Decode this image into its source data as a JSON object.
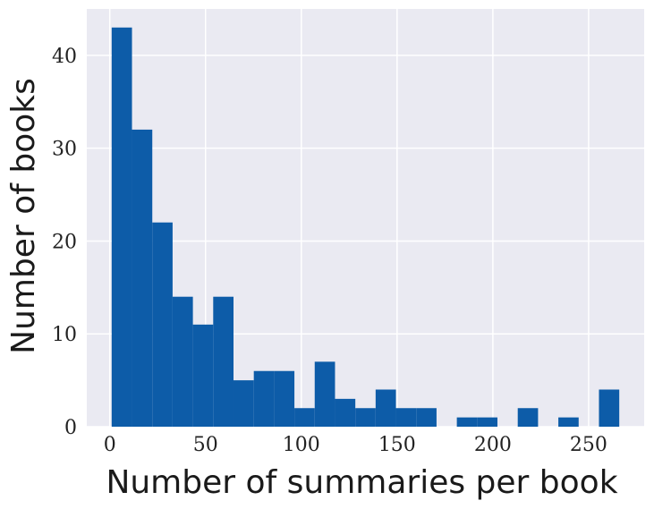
{
  "chart_data": {
    "type": "bar",
    "xlabel": "Number of summaries per book",
    "ylabel": "Number of books",
    "xlim": [
      -12,
      279
    ],
    "ylim": [
      0,
      45
    ],
    "xticks": [
      0,
      50,
      100,
      150,
      200,
      250
    ],
    "yticks": [
      0,
      10,
      20,
      30,
      40
    ],
    "grid": true,
    "bar_color": "#0d5ca8",
    "background_color": "#eaeaf2",
    "bins": [
      {
        "x0": 1.0,
        "x1": 11.6,
        "count": 43
      },
      {
        "x0": 11.6,
        "x1": 22.2,
        "count": 32
      },
      {
        "x0": 22.2,
        "x1": 32.8,
        "count": 22
      },
      {
        "x0": 32.8,
        "x1": 43.4,
        "count": 14
      },
      {
        "x0": 43.4,
        "x1": 54.0,
        "count": 11
      },
      {
        "x0": 54.0,
        "x1": 64.6,
        "count": 14
      },
      {
        "x0": 64.6,
        "x1": 75.2,
        "count": 5
      },
      {
        "x0": 75.2,
        "x1": 85.8,
        "count": 6
      },
      {
        "x0": 85.8,
        "x1": 96.4,
        "count": 6
      },
      {
        "x0": 96.4,
        "x1": 107.0,
        "count": 2
      },
      {
        "x0": 107.0,
        "x1": 117.6,
        "count": 7
      },
      {
        "x0": 117.6,
        "x1": 128.2,
        "count": 3
      },
      {
        "x0": 128.2,
        "x1": 138.8,
        "count": 2
      },
      {
        "x0": 138.8,
        "x1": 149.4,
        "count": 4
      },
      {
        "x0": 149.4,
        "x1": 160.0,
        "count": 2
      },
      {
        "x0": 160.0,
        "x1": 170.6,
        "count": 2
      },
      {
        "x0": 170.6,
        "x1": 181.2,
        "count": 0
      },
      {
        "x0": 181.2,
        "x1": 191.8,
        "count": 1
      },
      {
        "x0": 191.8,
        "x1": 202.4,
        "count": 1
      },
      {
        "x0": 202.4,
        "x1": 213.0,
        "count": 0
      },
      {
        "x0": 213.0,
        "x1": 223.6,
        "count": 2
      },
      {
        "x0": 223.6,
        "x1": 234.2,
        "count": 0
      },
      {
        "x0": 234.2,
        "x1": 244.8,
        "count": 1
      },
      {
        "x0": 244.8,
        "x1": 255.4,
        "count": 0
      },
      {
        "x0": 255.4,
        "x1": 266.0,
        "count": 4
      }
    ]
  }
}
